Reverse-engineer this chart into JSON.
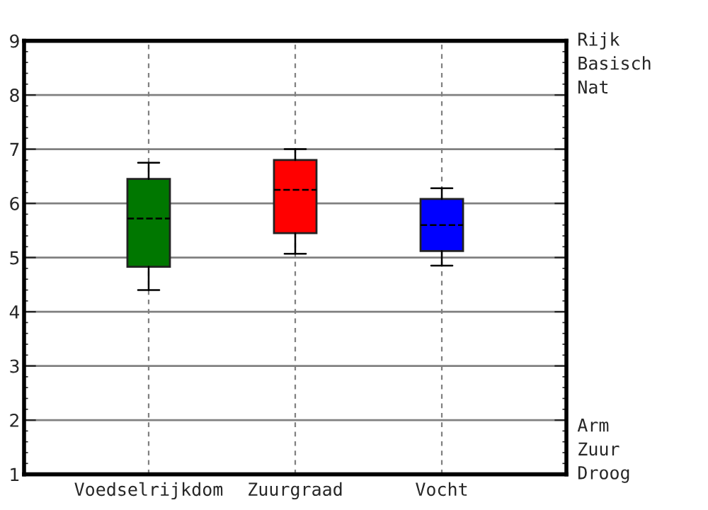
{
  "chart_data": {
    "type": "box",
    "categories": [
      "Voedselrijkdom",
      "Zuurgraad",
      "Vocht"
    ],
    "boxes": [
      {
        "low": 4.4,
        "q1": 4.83,
        "median": 5.72,
        "q3": 6.45,
        "high": 6.75
      },
      {
        "low": 5.07,
        "q1": 5.45,
        "median": 6.25,
        "q3": 6.8,
        "high": 7.0
      },
      {
        "low": 4.85,
        "q1": 5.12,
        "median": 5.6,
        "q3": 6.08,
        "high": 6.28
      }
    ],
    "colors": [
      "#007700",
      "#ff0000",
      "#0000ff"
    ],
    "ylim": [
      1,
      9
    ],
    "yticks": [
      1,
      2,
      3,
      4,
      5,
      6,
      7,
      8,
      9
    ],
    "grid": true,
    "annotations": [
      "Rijk",
      "Basisch",
      "Nat",
      "Arm",
      "Zuur",
      "Droog"
    ]
  }
}
